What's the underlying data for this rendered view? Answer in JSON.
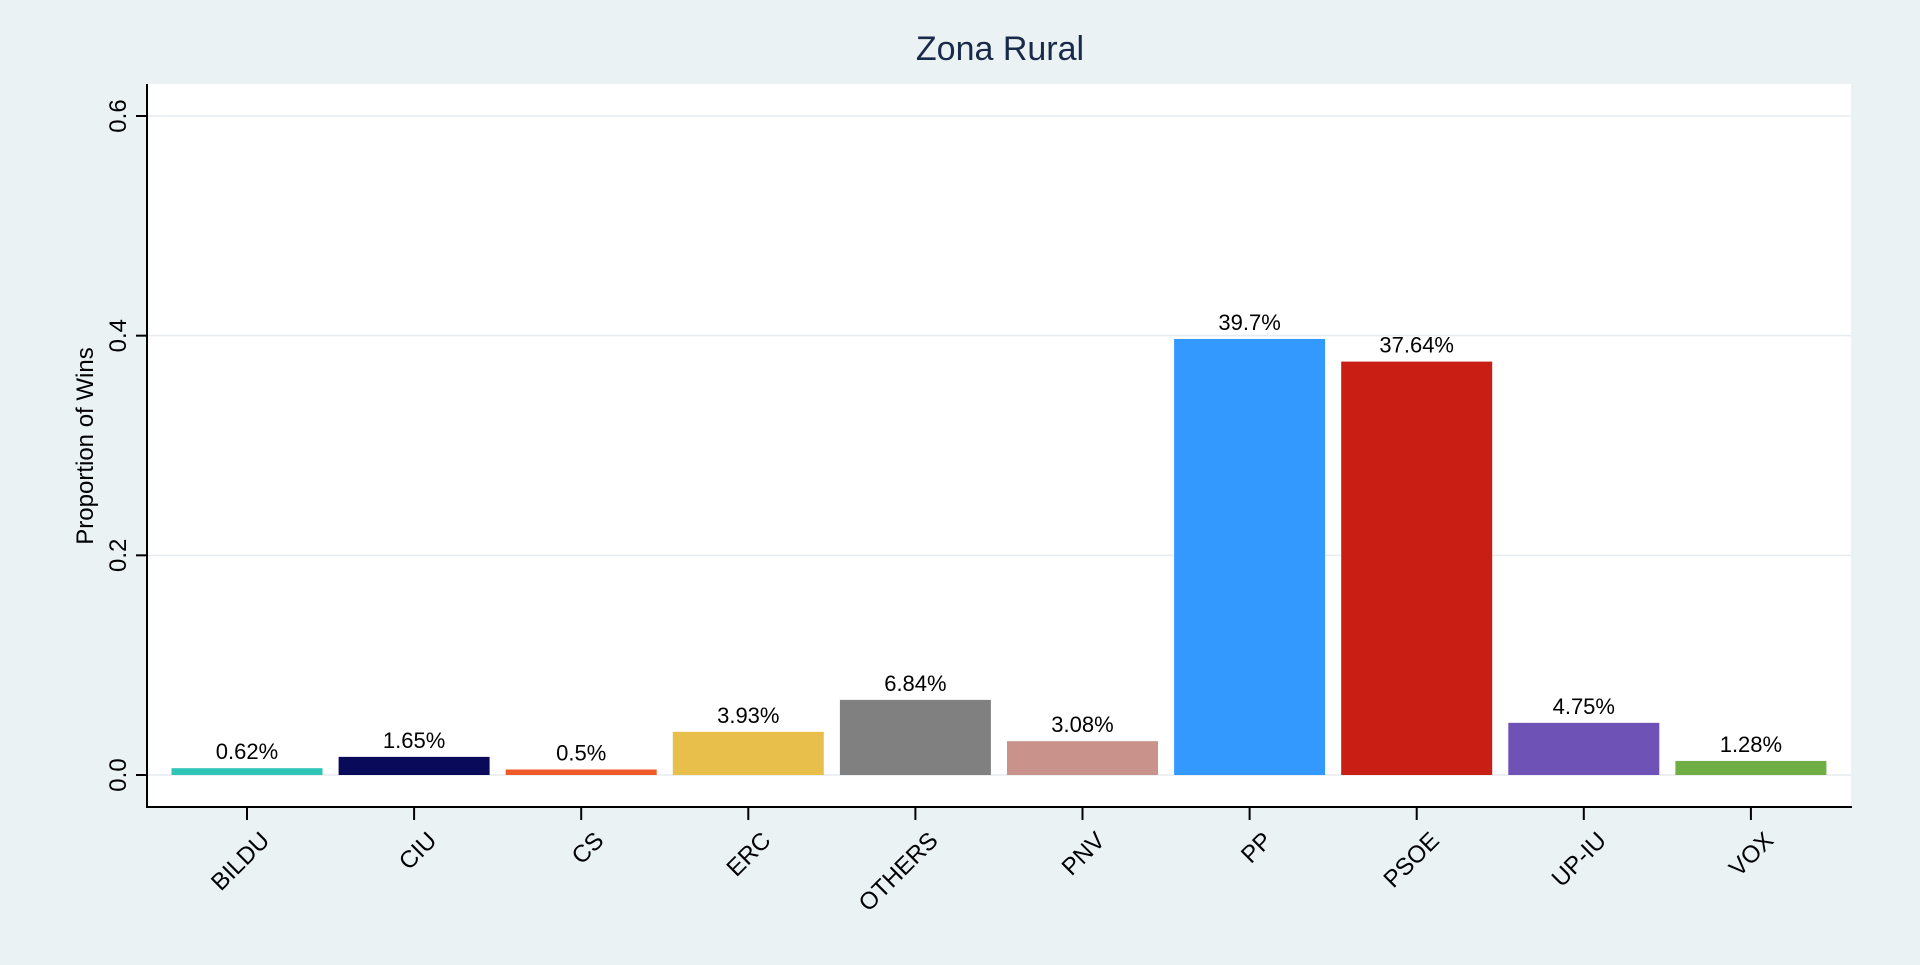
{
  "chart_data": {
    "type": "bar",
    "title": "Zona Rural",
    "xlabel": "",
    "ylabel": "Proportion of Wins",
    "ylim": [
      0,
      0.6
    ],
    "yticks": [
      "0.0",
      "0.2",
      "0.4",
      "0.6"
    ],
    "grid": true,
    "legend": "none",
    "categories": [
      "BILDU",
      "CIU",
      "CS",
      "ERC",
      "OTHERS",
      "PNV",
      "PP",
      "PSOE",
      "UP-IU",
      "VOX"
    ],
    "values": [
      0.0062,
      0.0165,
      0.005,
      0.0393,
      0.0684,
      0.0308,
      0.397,
      0.3764,
      0.0475,
      0.0128
    ],
    "labels": [
      "0.62%",
      "1.65%",
      "0.5%",
      "3.93%",
      "6.84%",
      "3.08%",
      "39.7%",
      "37.64%",
      "4.75%",
      "1.28%"
    ],
    "colors": [
      "#2ec4b6",
      "#0a0a5a",
      "#f05a28",
      "#e9bf4b",
      "#808080",
      "#c9928a",
      "#3399ff",
      "#c81e14",
      "#6f52b5",
      "#6fae44"
    ]
  }
}
